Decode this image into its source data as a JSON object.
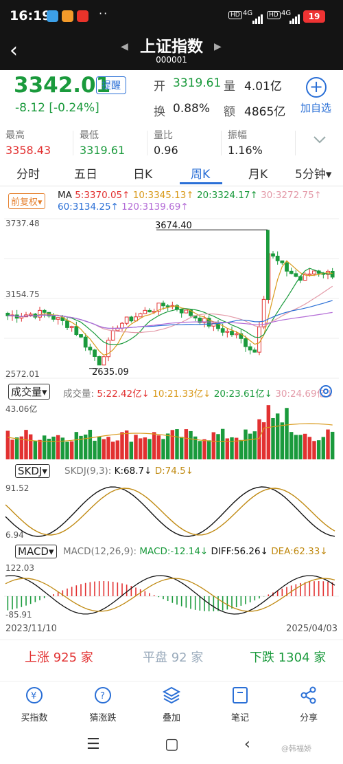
{
  "status": {
    "time": "16:19",
    "battery": "19",
    "network1": "4G",
    "network2": "4G",
    "hd": "HD"
  },
  "header": {
    "title": "上证指数",
    "code": "000001"
  },
  "quote": {
    "price": "3342.01",
    "alert_label": "提醒",
    "change": "-8.12",
    "change_pct": "[-0.24%]",
    "open_label": "开",
    "open": "3319.61",
    "vol_label": "量",
    "vol": "4.01亿",
    "turnover_label": "换",
    "turnover": "0.88%",
    "amount_label": "额",
    "amount": "4865亿",
    "add_label": "加自选"
  },
  "stats": [
    {
      "label": "最高",
      "value": "3358.43",
      "color": "red"
    },
    {
      "label": "最低",
      "value": "3319.61",
      "color": "green"
    },
    {
      "label": "量比",
      "value": "0.96",
      "color": "black"
    },
    {
      "label": "振幅",
      "value": "1.16%",
      "color": "black"
    }
  ],
  "tabs": [
    "分时",
    "五日",
    "日K",
    "周K",
    "月K",
    "5分钟▾"
  ],
  "active_tab": "周K",
  "kline": {
    "adjust_label": "前复权▾",
    "ma_label": "MA",
    "ma": [
      {
        "text": "5:3370.05↑",
        "color": "#e23131"
      },
      {
        "text": "10:3345.13↑",
        "color": "#d99a1c"
      },
      {
        "text": "20:3324.17↑",
        "color": "#1a9a3c"
      },
      {
        "text": "30:3272.75↑",
        "color": "#e39aa8"
      },
      {
        "text": "60:3134.25↑",
        "color": "#2a6fd6"
      },
      {
        "text": "120:3139.69↑",
        "color": "#b36bd6"
      }
    ],
    "y_top": "3737.48",
    "y_mid": "3154.75",
    "y_bottom": "2572.01",
    "high_label": "3674.40",
    "low_label": "2635.09"
  },
  "volume": {
    "btn_label": "成交量▾",
    "name": "成交量:",
    "ma": [
      {
        "text": "5:22.42亿↓",
        "color": "#e23131"
      },
      {
        "text": "10:21.33亿↓",
        "color": "#d99a1c"
      },
      {
        "text": "20:23.61亿↓",
        "color": "#1a9a3c"
      },
      {
        "text": "30:24.69亿↓",
        "color": "#e39aa8"
      }
    ],
    "y_top": "43.06亿"
  },
  "skdj": {
    "btn_label": "SKDJ▾",
    "name": "SKDJ(9,3):",
    "k": "K:68.7↓",
    "d": "D:74.5↓",
    "y_top": "91.52",
    "y_bottom": "6.94"
  },
  "macd": {
    "btn_label": "MACD▾",
    "name": "MACD(12,26,9):",
    "macd": "MACD:-12.14↓",
    "diff": "DIFF:56.26↓",
    "dea": "DEA:62.33↓",
    "y_top": "122.03",
    "y_bottom": "-85.91"
  },
  "dates": {
    "start": "2023/11/10",
    "end": "2025/04/03"
  },
  "breadth": {
    "up": "上涨 925 家",
    "flat": "平盘 92 家",
    "down": "下跌 1304 家"
  },
  "toolbar": [
    "买指数",
    "猜涨跌",
    "叠加",
    "笔记",
    "分享"
  ],
  "watermark": "@韩福娇"
}
